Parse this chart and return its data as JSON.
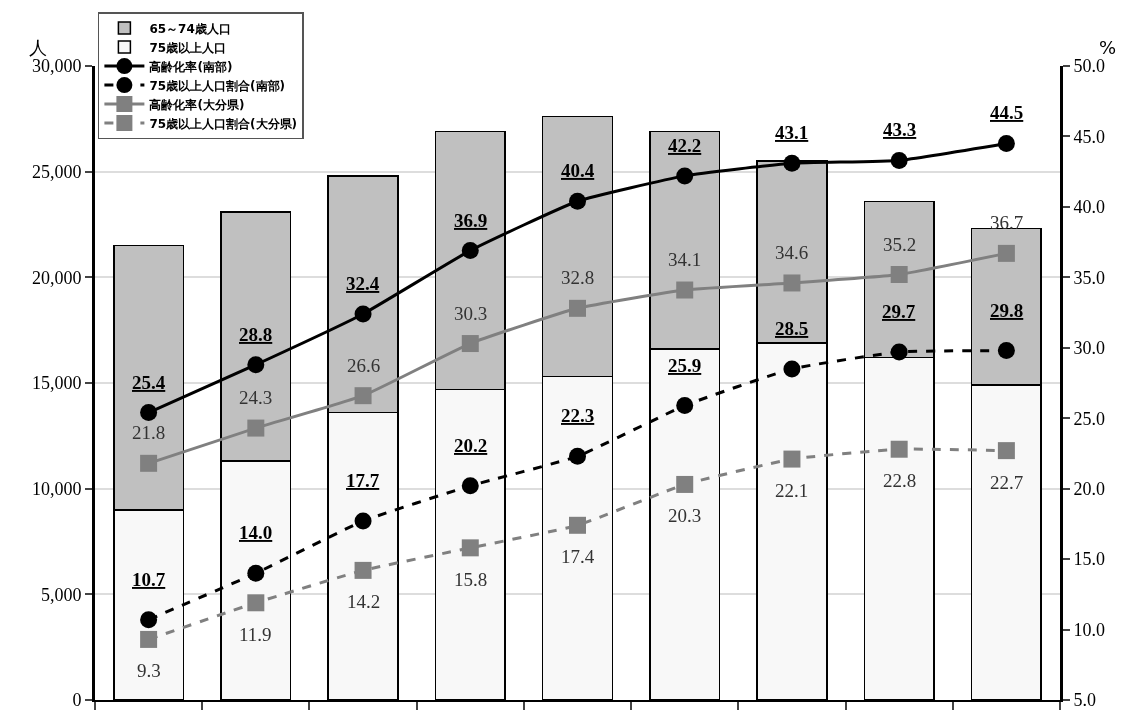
{
  "chart_data": {
    "type": "bar",
    "stacked": true,
    "ylabel": "人",
    "y2label": "%",
    "categories": [
      null,
      null,
      null,
      null,
      null,
      null,
      null,
      null,
      null
    ],
    "series": [
      {
        "name": "75歳以上人口",
        "color": "#f8f8f8",
        "values": [
          9000,
          11300,
          13600,
          14700,
          15300,
          16600,
          16900,
          16200,
          14900
        ]
      },
      {
        "name": "65～74歳人口",
        "color": "#c0c0c0",
        "values": [
          12500,
          11800,
          11200,
          12200,
          12300,
          10300,
          8600,
          7400,
          7400
        ]
      },
      {
        "name": "高齢化率(南部)",
        "type": "line",
        "axis": "y2",
        "color": "#000000",
        "marker": "circle",
        "line_style": "solid",
        "values": [
          25.4,
          28.8,
          32.4,
          36.9,
          40.4,
          42.2,
          43.1,
          43.3,
          44.5
        ],
        "value_labels": [
          "25.4",
          "28.8",
          "32.4",
          "36.9",
          "40.4",
          "42.2",
          "43.1",
          "43.3",
          "44.5"
        ]
      },
      {
        "name": "75歳以上人口割合(南部)",
        "type": "line",
        "axis": "y2",
        "color": "#000000",
        "marker": "circle",
        "line_style": "dashed",
        "values": [
          10.7,
          14.0,
          17.7,
          20.2,
          22.3,
          25.9,
          28.5,
          29.7,
          29.8
        ],
        "value_labels": [
          "10.7",
          "14.0",
          "17.7",
          "20.2",
          "22.3",
          "25.9",
          "28.5",
          "29.7",
          "29.8"
        ]
      },
      {
        "name": "高齢化率(大分県)",
        "type": "line",
        "axis": "y2",
        "color": "#808080",
        "marker": "square",
        "line_style": "solid",
        "values": [
          21.8,
          24.3,
          26.6,
          30.3,
          32.8,
          34.1,
          34.6,
          35.2,
          36.7
        ],
        "value_labels": [
          "21.8",
          "24.3",
          "26.6",
          "30.3",
          "32.8",
          "34.1",
          "34.6",
          "35.2",
          "36.7"
        ]
      },
      {
        "name": "75歳以上人口割合(大分県)",
        "type": "line",
        "axis": "y2",
        "color": "#808080",
        "marker": "square",
        "line_style": "dashed",
        "values": [
          9.3,
          11.9,
          14.2,
          15.8,
          17.4,
          20.3,
          22.1,
          22.8,
          22.7
        ],
        "value_labels": [
          "9.3",
          "11.9",
          "14.2",
          "15.8",
          "17.4",
          "20.3",
          "22.1",
          "22.8",
          "22.7"
        ]
      }
    ],
    "ylim": [
      0,
      30000
    ],
    "yticks": [
      0,
      {
        "value": 5000,
        "label": "5,000"
      },
      {
        "value": 10000,
        "label": "10,000"
      },
      {
        "value": 15000,
        "label": "15,000"
      },
      {
        "value": 20000,
        "label": "20,000"
      },
      {
        "value": 25000,
        "label": "25,000"
      },
      {
        "value": 30000,
        "label": "30,000"
      }
    ],
    "y2lim": [
      5,
      50
    ],
    "y2ticks": [
      {
        "value": 5,
        "label": "5.0"
      },
      {
        "value": 10,
        "label": "10.0"
      },
      {
        "value": 15,
        "label": "15.0"
      },
      {
        "value": 20,
        "label": "20.0"
      },
      {
        "value": 25,
        "label": "25.0"
      },
      {
        "value": 30,
        "label": "30.0"
      },
      {
        "value": 35,
        "label": "35.0"
      },
      {
        "value": 40,
        "label": "40.0"
      },
      {
        "value": 45,
        "label": "45.0"
      },
      {
        "value": 50,
        "label": "50.0"
      }
    ],
    "grid": "y",
    "legend": "top left",
    "tick_labels": "y"
  }
}
